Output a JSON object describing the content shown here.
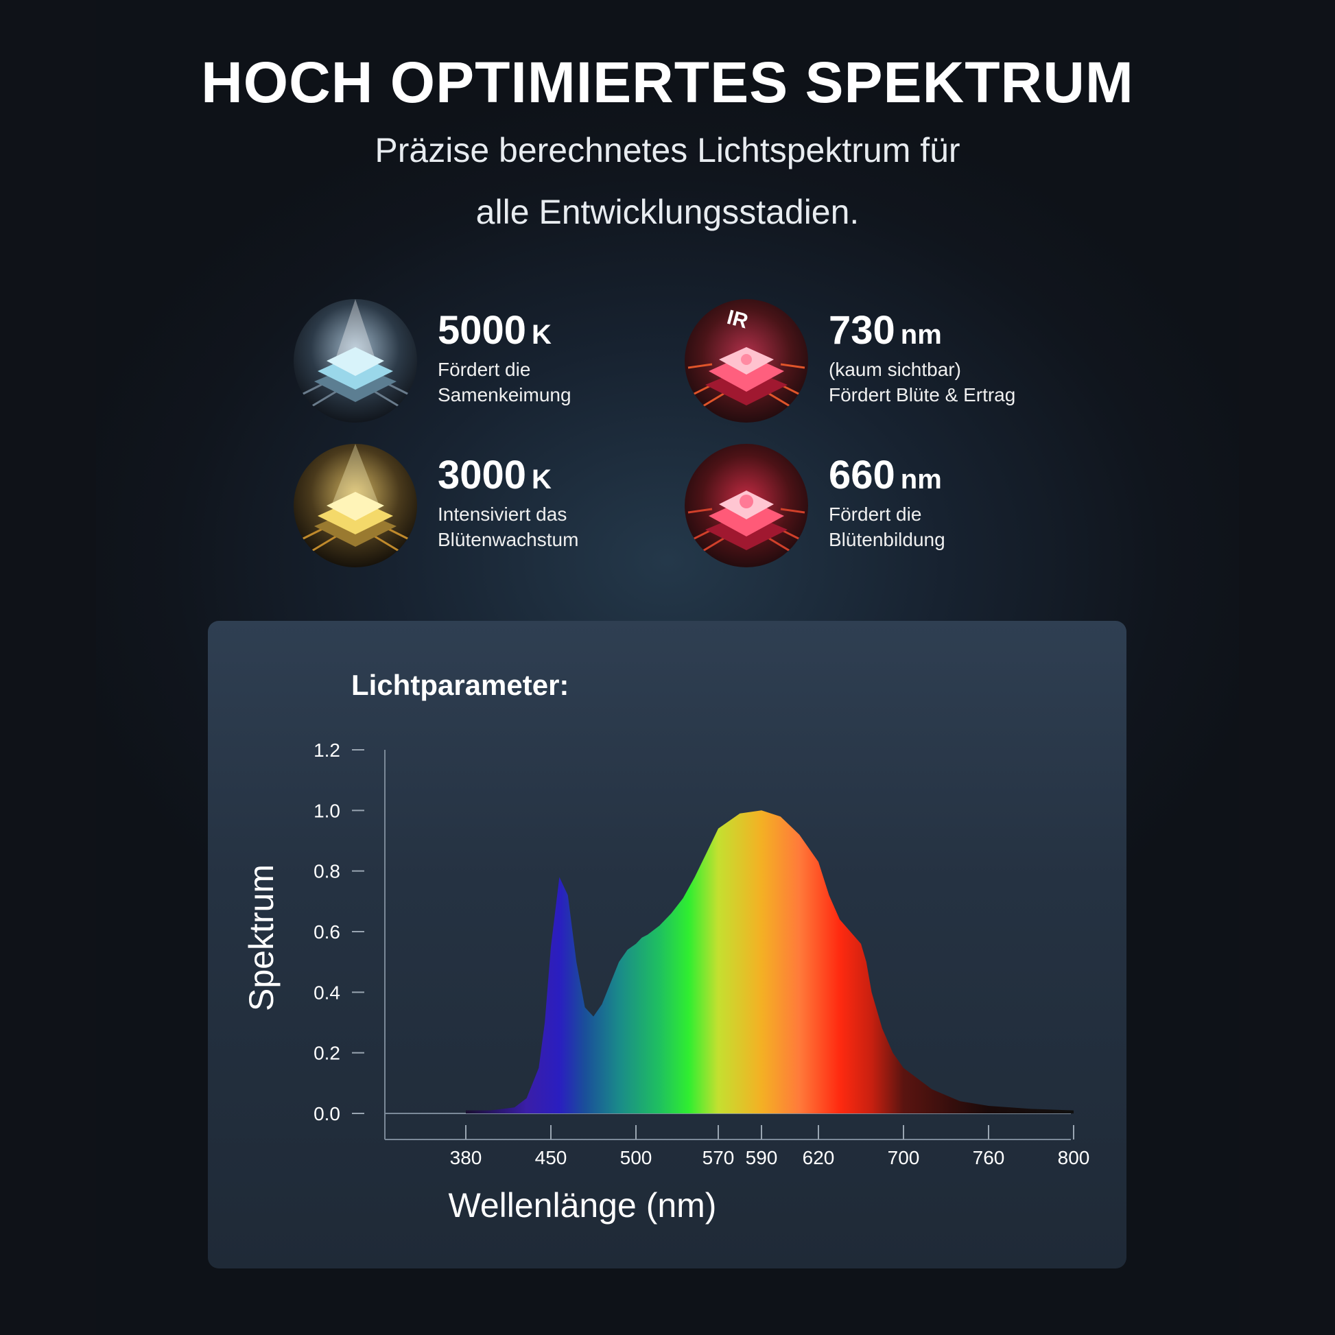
{
  "header": {
    "title": "HOCH OPTIMIERTES SPEKTRUM",
    "subtitle_line1": "Präzise berechnetes Lichtspektrum für",
    "subtitle_line2": "alle Entwicklungsstadien."
  },
  "features": [
    {
      "value": "5000",
      "unit": "K",
      "desc": "Fördert die\nSamenkeimung",
      "icon": "white-led-chip-icon",
      "color": "#bfe6f0"
    },
    {
      "value": "730",
      "unit": "nm",
      "desc": "(kaum sichtbar)\nFördert Blüte & Ertrag",
      "icon": "infrared-led-chip-icon",
      "badge": "IR",
      "color": "#ff3a5c"
    },
    {
      "value": "3000",
      "unit": "K",
      "desc": "Intensiviert das\nBlütenwachstum",
      "icon": "warm-led-chip-icon",
      "color": "#ffe37a"
    },
    {
      "value": "660",
      "unit": "nm",
      "desc": "Fördert die\nBlütenbildung",
      "icon": "red-led-chip-icon",
      "color": "#ff4f6e"
    }
  ],
  "panel": {
    "title": "Lichtparameter:"
  },
  "chart_data": {
    "type": "area",
    "title": "Lichtparameter:",
    "xlabel": "Wellenlänge (nm)",
    "ylabel": "Spektrum",
    "xlim": [
      380,
      800
    ],
    "ylim": [
      0,
      1.2
    ],
    "xticks": [
      380,
      450,
      500,
      570,
      590,
      620,
      700,
      760,
      800
    ],
    "yticks": [
      "0.0",
      "0.2",
      "0.4",
      "0.6",
      "0.8",
      "1.0",
      "1.2"
    ],
    "grid": false,
    "series": [
      {
        "x": [
          380,
          400,
          420,
          430,
          440,
          445,
          450,
          455,
          460,
          465,
          470,
          475,
          480,
          485,
          490,
          495,
          500,
          505,
          510,
          520,
          530,
          540,
          550,
          560,
          570,
          580,
          590,
          600,
          610,
          620,
          630,
          640,
          650,
          660,
          665,
          670,
          680,
          690,
          700,
          720,
          740,
          760,
          780,
          800
        ],
        "y": [
          0.01,
          0.01,
          0.02,
          0.05,
          0.15,
          0.3,
          0.55,
          0.78,
          0.72,
          0.5,
          0.35,
          0.32,
          0.36,
          0.43,
          0.5,
          0.54,
          0.56,
          0.58,
          0.59,
          0.62,
          0.66,
          0.71,
          0.78,
          0.86,
          0.94,
          0.99,
          1.0,
          0.98,
          0.92,
          0.83,
          0.72,
          0.64,
          0.6,
          0.56,
          0.5,
          0.4,
          0.28,
          0.2,
          0.15,
          0.08,
          0.04,
          0.025,
          0.015,
          0.01
        ]
      }
    ]
  }
}
